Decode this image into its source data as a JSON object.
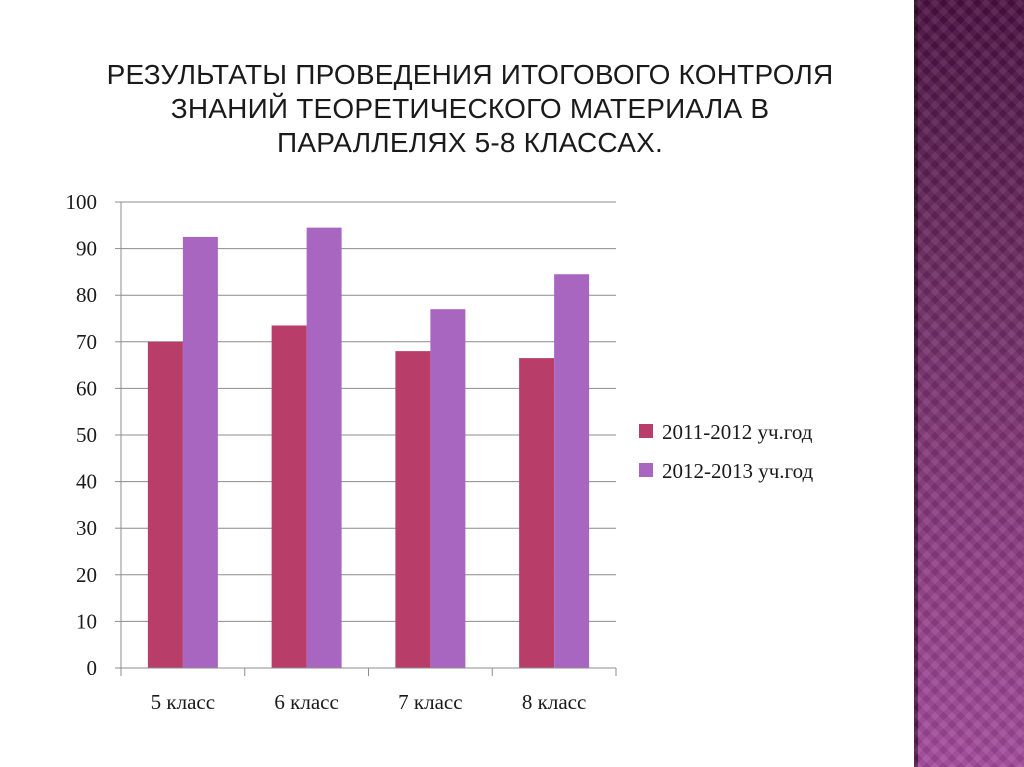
{
  "slide": {
    "title_lines": [
      "Результаты проведения итогового контроля",
      "знаний теоретического материала в",
      "параллелях 5-8 классах."
    ]
  },
  "colors": {
    "series_1": "#b83d68",
    "series_2": "#a866c0",
    "gridline": "#8c8c8c",
    "side_band": "#7a2d70"
  },
  "chart_data": {
    "type": "bar",
    "title": "Результаты проведения итогового контроля знаний теоретического материала в параллелях 5-8 классах.",
    "categories": [
      "5 класс",
      "6 класс",
      "7 класс",
      "8 класс"
    ],
    "series": [
      {
        "name": "2011-2012 уч.год",
        "values": [
          70,
          73.5,
          68,
          66.5
        ]
      },
      {
        "name": "2012-2013 уч.год",
        "values": [
          92.5,
          94.5,
          77,
          84.5
        ]
      }
    ],
    "ylim": [
      0,
      100
    ],
    "yticks": [
      0,
      10,
      20,
      30,
      40,
      50,
      60,
      70,
      80,
      90,
      100
    ],
    "grid": true,
    "legend_position": "right",
    "xlabel": "",
    "ylabel": ""
  }
}
